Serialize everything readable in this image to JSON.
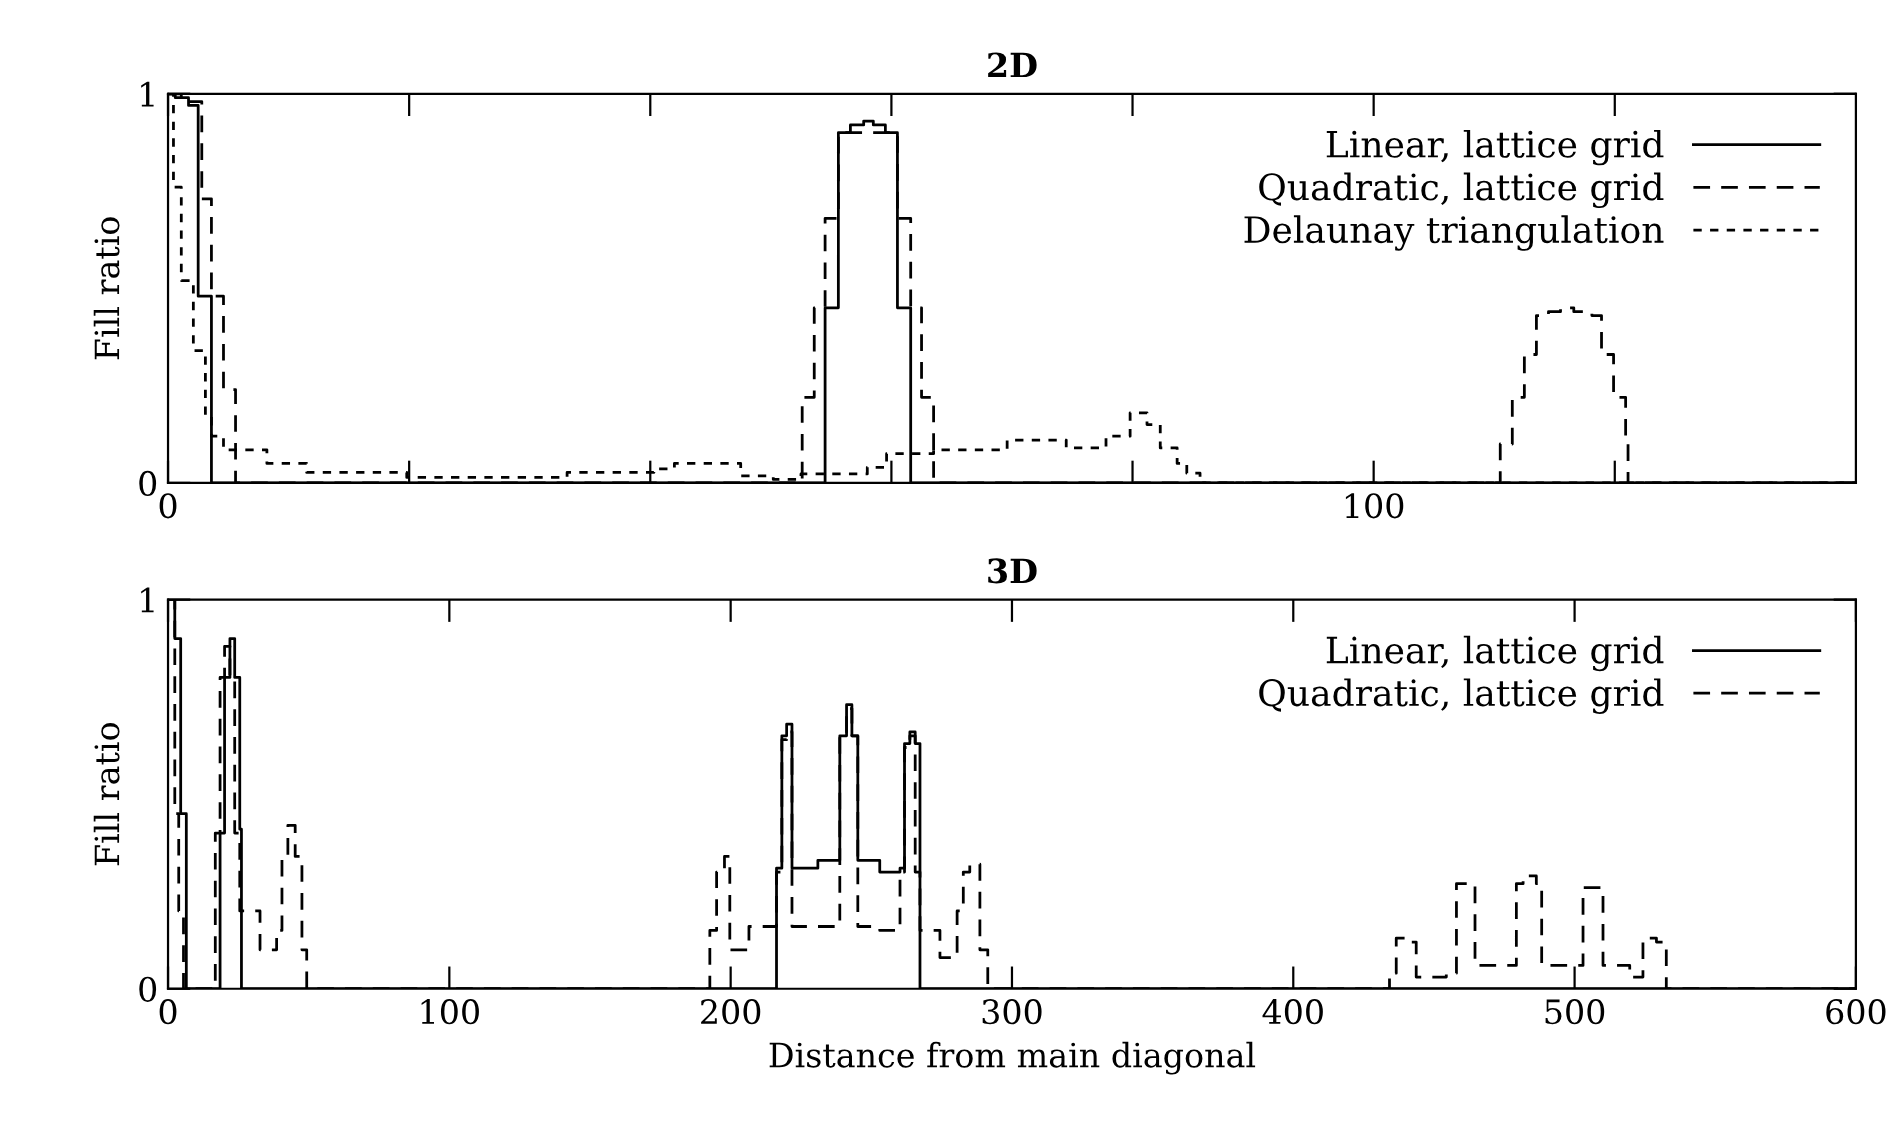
{
  "chart_data": [
    {
      "type": "step",
      "title": "2D",
      "ylabel": "Fill ratio",
      "xlim": [
        0,
        140
      ],
      "ylim": [
        0,
        1
      ],
      "xticks": [
        0,
        {
          "value": 20,
          "label": null
        },
        {
          "value": 40,
          "label": null
        },
        {
          "value": 60,
          "label": null
        },
        {
          "value": 80,
          "label": null
        },
        100,
        {
          "value": 120,
          "label": null
        }
      ],
      "yticks": [
        0,
        1
      ],
      "legend": "top right",
      "series": [
        {
          "name": "Linear, lattice grid",
          "color": "#000000",
          "line_style": "solid",
          "x": [
            0,
            0.6,
            1.7,
            2.5,
            3.6,
            54.5,
            55.6,
            56.6,
            57.7,
            58.5,
            59.5,
            60.5,
            61.6,
            140
          ],
          "values": [
            1.0,
            0.99,
            0.97,
            0.48,
            0,
            0.45,
            0.9,
            0.92,
            0.93,
            0.92,
            0.9,
            0.45,
            0,
            0
          ]
        },
        {
          "name": "Quadratic, lattice grid",
          "color": "#000000",
          "line_style": "dashed",
          "x": [
            0,
            1.1,
            2.8,
            3.6,
            4.6,
            5.6,
            52.6,
            53.6,
            54.5,
            55.6,
            60.5,
            61.6,
            62.5,
            63.5,
            110.5,
            111.5,
            112.5,
            113.5,
            114.5,
            115.5,
            116.6,
            118.1,
            118.9,
            119.9,
            120.9,
            121.1,
            140
          ],
          "values": [
            1.0,
            0.98,
            0.73,
            0.48,
            0.24,
            0,
            0.22,
            0.45,
            0.68,
            0.9,
            0.68,
            0.45,
            0.22,
            0,
            0.1,
            0.22,
            0.33,
            0.43,
            0.44,
            0.45,
            0.44,
            0.43,
            0.33,
            0.22,
            0.1,
            0,
            0
          ]
        },
        {
          "name": "Delaunay triangulation",
          "color": "#000000",
          "line_style": "dotted",
          "x": [
            0,
            0.45,
            1.1,
            2.1,
            3.1,
            3.6,
            4.6,
            8.2,
            11.5,
            19.8,
            27,
            33.1,
            40.3,
            42,
            44.7,
            47.5,
            50.2,
            52.5,
            58,
            59.6,
            63.5,
            65.8,
            69.6,
            74.5,
            77.8,
            79.8,
            81.2,
            82.3,
            83.7,
            84.5,
            85.6,
            140
          ],
          "values": [
            1.0,
            0.76,
            0.52,
            0.34,
            0.17,
            0.12,
            0.085,
            0.05,
            0.027,
            0.014,
            0.014,
            0.027,
            0.036,
            0.05,
            0.05,
            0.018,
            0.009,
            0.023,
            0.04,
            0.075,
            0.085,
            0.085,
            0.11,
            0.09,
            0.12,
            0.18,
            0.15,
            0.09,
            0.05,
            0.025,
            0,
            0
          ]
        }
      ]
    },
    {
      "type": "step",
      "title": "3D",
      "ylabel": "Fill ratio",
      "xlabel": "Distance from main diagonal",
      "xlim": [
        0,
        600
      ],
      "ylim": [
        0,
        1
      ],
      "xticks": [
        0,
        100,
        200,
        300,
        400,
        500,
        600
      ],
      "yticks": [
        0,
        1
      ],
      "legend": "top right",
      "series": [
        {
          "name": "Linear, lattice grid",
          "color": "#000000",
          "line_style": "solid",
          "x": [
            0,
            2.4,
            4.5,
            6.5,
            18.5,
            20.1,
            22,
            23.7,
            25.5,
            26.1,
            216.3,
            218.2,
            219.9,
            221.8,
            231,
            238.8,
            241.2,
            243.1,
            245.2,
            253,
            260.2,
            261.8,
            263.7,
            265.6,
            267.3,
            600
          ],
          "values": [
            1.0,
            0.9,
            0.45,
            0,
            0.4,
            0.8,
            0.9,
            0.8,
            0.41,
            0,
            0.31,
            0.65,
            0.68,
            0.31,
            0.33,
            0.65,
            0.73,
            0.65,
            0.33,
            0.3,
            0.31,
            0.63,
            0.66,
            0.63,
            0,
            0
          ]
        },
        {
          "name": "Quadratic, lattice grid",
          "color": "#000000",
          "line_style": "dashed",
          "x": [
            0,
            2.4,
            3.8,
            5.5,
            16.8,
            18.5,
            20.1,
            22,
            23.7,
            25.5,
            32.7,
            38.6,
            40.5,
            42.6,
            45.2,
            47.6,
            49.3,
            192.6,
            195,
            197.8,
            199.7,
            206.5,
            216.3,
            218.2,
            219.9,
            221.8,
            231,
            238.8,
            241.2,
            243.1,
            245.2,
            253,
            260.2,
            261.8,
            263.7,
            265.6,
            267.3,
            274.4,
            280.5,
            282.7,
            285,
            288.6,
            291.4,
            434.2,
            436.6,
            441.3,
            443.7,
            449.6,
            454.4,
            458,
            462.7,
            464.6,
            474.6,
            479.3,
            481.7,
            486.4,
            488.3,
            498.2,
            503,
            507.7,
            510.1,
            519.6,
            524.3,
            529.1,
            532.6,
            600
          ],
          "values": [
            1.0,
            0.45,
            0.2,
            0,
            0.4,
            0.8,
            0.88,
            0.8,
            0.4,
            0.2,
            0.1,
            0.15,
            0.34,
            0.42,
            0.34,
            0.1,
            0,
            0.15,
            0.3,
            0.34,
            0.1,
            0.16,
            0.3,
            0.64,
            0.66,
            0.16,
            0.16,
            0.65,
            0.72,
            0.65,
            0.16,
            0.15,
            0.3,
            0.62,
            0.65,
            0.3,
            0.15,
            0.08,
            0.2,
            0.3,
            0.32,
            0.1,
            0,
            0.04,
            0.13,
            0.12,
            0.03,
            0.03,
            0.04,
            0.27,
            0.27,
            0.06,
            0.06,
            0.27,
            0.29,
            0.27,
            0.06,
            0.06,
            0.26,
            0.26,
            0.06,
            0.03,
            0.13,
            0.12,
            0,
            0
          ]
        }
      ]
    }
  ]
}
